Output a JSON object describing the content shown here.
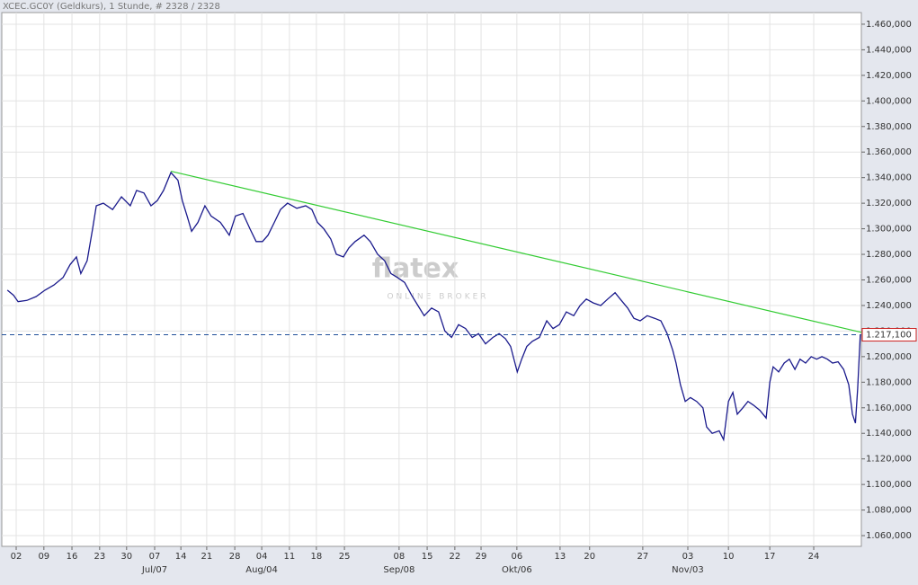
{
  "chart_data": {
    "type": "line",
    "title": "XCEC.GC0Y (Geldkurs), 1 Stunde, # 2328 / 2328",
    "watermark": [
      "flatex",
      "ONLINE BROKER"
    ],
    "xlim": [
      0,
      2328
    ],
    "ylim": [
      1.0516,
      1.4691
    ],
    "grid": true,
    "xticks": [
      {
        "value": 39,
        "label": "02"
      },
      {
        "value": 114,
        "label": "09"
      },
      {
        "value": 190,
        "label": "16"
      },
      {
        "value": 265,
        "label": "23"
      },
      {
        "value": 338,
        "label": "30"
      },
      {
        "value": 414,
        "label": "07"
      },
      {
        "value": 485,
        "label": "14"
      },
      {
        "value": 555,
        "label": "21"
      },
      {
        "value": 631,
        "label": "28"
      },
      {
        "value": 704,
        "label": "04"
      },
      {
        "value": 779,
        "label": "11"
      },
      {
        "value": 852,
        "label": "18"
      },
      {
        "value": 928,
        "label": "25"
      },
      {
        "value": 1076,
        "label": "08"
      },
      {
        "value": 1152,
        "label": "15"
      },
      {
        "value": 1227,
        "label": "22"
      },
      {
        "value": 1298,
        "label": "29"
      },
      {
        "value": 1395,
        "label": "06"
      },
      {
        "value": 1512,
        "label": "13"
      },
      {
        "value": 1592,
        "label": "20"
      },
      {
        "value": 1736,
        "label": "27"
      },
      {
        "value": 1858,
        "label": "03"
      },
      {
        "value": 1968,
        "label": "10"
      },
      {
        "value": 2080,
        "label": "17"
      },
      {
        "value": 2199,
        "label": "24"
      }
    ],
    "month_labels": [
      {
        "value": 414,
        "label": "Jul/07"
      },
      {
        "value": 704,
        "label": "Aug/04"
      },
      {
        "value": 1076,
        "label": "Sep/08"
      },
      {
        "value": 1395,
        "label": "Okt/06"
      },
      {
        "value": 1858,
        "label": "Nov/03"
      }
    ],
    "yticks": [
      {
        "value": 1.06,
        "label": "1.060,000"
      },
      {
        "value": 1.08,
        "label": "1.080,000"
      },
      {
        "value": 1.1,
        "label": "1.100,000"
      },
      {
        "value": 1.12,
        "label": "1.120,000"
      },
      {
        "value": 1.14,
        "label": "1.140,000"
      },
      {
        "value": 1.16,
        "label": "1.160,000"
      },
      {
        "value": 1.18,
        "label": "1.180,000"
      },
      {
        "value": 1.2,
        "label": "1.200,000"
      },
      {
        "value": 1.22,
        "label": "1.220,000"
      },
      {
        "value": 1.24,
        "label": "1.240,000"
      },
      {
        "value": 1.26,
        "label": "1.260,000"
      },
      {
        "value": 1.28,
        "label": "1.280,000"
      },
      {
        "value": 1.3,
        "label": "1.300,000"
      },
      {
        "value": 1.32,
        "label": "1.320,000"
      },
      {
        "value": 1.34,
        "label": "1.340,000"
      },
      {
        "value": 1.36,
        "label": "1.360,000"
      },
      {
        "value": 1.38,
        "label": "1.380,000"
      },
      {
        "value": 1.4,
        "label": "1.400,000"
      },
      {
        "value": 1.42,
        "label": "1.420,000"
      },
      {
        "value": 1.44,
        "label": "1.440,000"
      },
      {
        "value": 1.46,
        "label": "1.460,000"
      }
    ],
    "reference_line": {
      "value": 1.2171,
      "label": "1.217,100",
      "color": "#1f4f9a"
    },
    "trendline": {
      "x": [
        458,
        2328
      ],
      "values": [
        1.345,
        1.219
      ],
      "color": "#33cc33"
    },
    "series": [
      {
        "color": "#1a1a8c",
        "x": [
          15,
          32,
          44,
          68,
          93,
          117,
          141,
          166,
          185,
          202,
          214,
          231,
          246,
          256,
          275,
          300,
          324,
          348,
          365,
          385,
          404,
          421,
          438,
          458,
          477,
          489,
          502,
          514,
          531,
          550,
          567,
          592,
          616,
          633,
          653,
          672,
          689,
          706,
          721,
          738,
          755,
          774,
          799,
          823,
          840,
          855,
          872,
          891,
          906,
          925,
          940,
          957,
          981,
          998,
          1018,
          1037,
          1054,
          1071,
          1091,
          1110,
          1127,
          1144,
          1164,
          1183,
          1200,
          1218,
          1237,
          1256,
          1274,
          1291,
          1310,
          1330,
          1347,
          1364,
          1378,
          1396,
          1408,
          1422,
          1437,
          1456,
          1476,
          1493,
          1510,
          1529,
          1549,
          1566,
          1583,
          1602,
          1622,
          1641,
          1661,
          1675,
          1695,
          1712,
          1729,
          1748,
          1768,
          1785,
          1802,
          1817,
          1826,
          1838,
          1851,
          1865,
          1882,
          1899,
          1909,
          1924,
          1943,
          1955,
          1968,
          1980,
          1992,
          2007,
          2021,
          2036,
          2053,
          2070,
          2080,
          2089,
          2104,
          2119,
          2133,
          2148,
          2162,
          2177,
          2192,
          2207,
          2221,
          2236,
          2250,
          2265,
          2280,
          2294,
          2304,
          2312,
          2318,
          2325
        ],
        "values": [
          1.252,
          1.248,
          1.243,
          1.244,
          1.247,
          1.252,
          1.256,
          1.262,
          1.272,
          1.278,
          1.265,
          1.275,
          1.3,
          1.318,
          1.32,
          1.315,
          1.325,
          1.318,
          1.33,
          1.328,
          1.318,
          1.322,
          1.33,
          1.344,
          1.338,
          1.322,
          1.31,
          1.298,
          1.305,
          1.318,
          1.31,
          1.305,
          1.295,
          1.31,
          1.312,
          1.3,
          1.29,
          1.29,
          1.295,
          1.305,
          1.315,
          1.32,
          1.316,
          1.318,
          1.315,
          1.305,
          1.3,
          1.292,
          1.28,
          1.278,
          1.285,
          1.29,
          1.295,
          1.29,
          1.28,
          1.275,
          1.265,
          1.262,
          1.258,
          1.248,
          1.24,
          1.232,
          1.238,
          1.235,
          1.22,
          1.215,
          1.225,
          1.222,
          1.215,
          1.218,
          1.21,
          1.215,
          1.218,
          1.214,
          1.208,
          1.188,
          1.198,
          1.208,
          1.212,
          1.215,
          1.228,
          1.222,
          1.225,
          1.235,
          1.232,
          1.24,
          1.245,
          1.242,
          1.24,
          1.245,
          1.25,
          1.245,
          1.238,
          1.23,
          1.228,
          1.232,
          1.23,
          1.228,
          1.218,
          1.205,
          1.195,
          1.178,
          1.165,
          1.168,
          1.165,
          1.16,
          1.145,
          1.14,
          1.142,
          1.135,
          1.165,
          1.172,
          1.155,
          1.16,
          1.165,
          1.162,
          1.158,
          1.152,
          1.18,
          1.192,
          1.188,
          1.195,
          1.198,
          1.19,
          1.198,
          1.195,
          1.2,
          1.198,
          1.2,
          1.198,
          1.195,
          1.196,
          1.19,
          1.178,
          1.155,
          1.148,
          1.175,
          1.217
        ]
      }
    ]
  }
}
